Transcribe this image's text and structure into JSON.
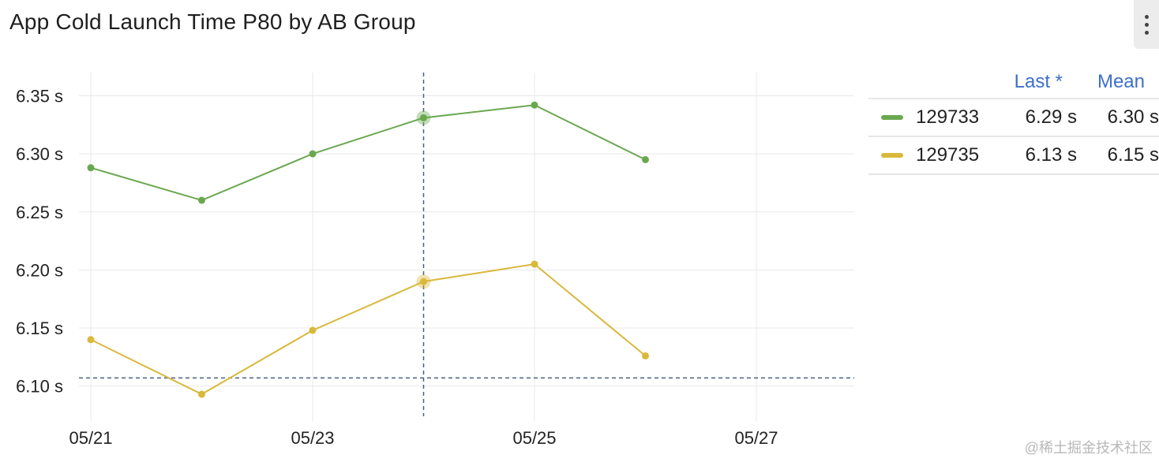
{
  "panel": {
    "title": "App Cold Launch Time P80 by AB Group"
  },
  "legend": {
    "headers": {
      "last": "Last *",
      "mean": "Mean"
    },
    "rows": [
      {
        "name": "129733",
        "last": "6.29 s",
        "mean": "6.30 s",
        "color": "#6aa84f"
      },
      {
        "name": "129735",
        "last": "6.13 s",
        "mean": "6.15 s",
        "color": "#d9b83a"
      }
    ]
  },
  "watermark": "@稀土掘金技术社区",
  "chart_data": {
    "type": "line",
    "title": "App Cold Launch Time P80 by AB Group",
    "x": [
      "05/21",
      "05/22",
      "05/23",
      "05/24",
      "05/25",
      "05/26"
    ],
    "x_ticks": [
      "05/21",
      "05/23",
      "05/25",
      "05/27"
    ],
    "y_ticks": [
      6.1,
      6.15,
      6.2,
      6.25,
      6.3,
      6.35
    ],
    "y_tick_labels": [
      "6.10 s",
      "6.15 s",
      "6.20 s",
      "6.25 s",
      "6.30 s",
      "6.35 s"
    ],
    "ylim": [
      6.074,
      6.37
    ],
    "unit": "s",
    "series": [
      {
        "name": "129733",
        "color": "#6aa84f",
        "values": [
          6.288,
          6.26,
          6.3,
          6.331,
          6.342,
          6.295
        ]
      },
      {
        "name": "129735",
        "color": "#d9b83a",
        "values": [
          6.14,
          6.093,
          6.148,
          6.19,
          6.205,
          6.126
        ]
      }
    ],
    "hover": {
      "x": "05/24",
      "y": 6.107
    },
    "grid": true,
    "legend_position": "right"
  }
}
